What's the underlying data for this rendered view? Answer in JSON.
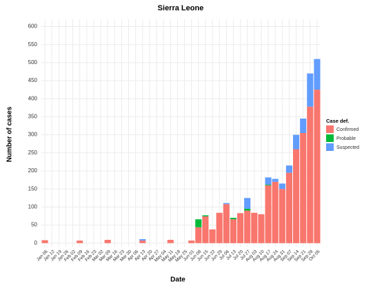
{
  "chart_data": {
    "type": "stacked_bar",
    "title": "Sierra Leone",
    "x_label": "Date",
    "y_label": "Number of cases",
    "categories": [
      "Jan 06",
      "Jan 12",
      "Jan 19",
      "Jan 26",
      "Feb 02",
      "Feb 09",
      "Feb 16",
      "Feb 23",
      "Mar 02",
      "Mar 09",
      "Mar 16",
      "Mar 23",
      "Mar 30",
      "Apr 06",
      "Apr 13",
      "Apr 20",
      "Apr 27",
      "May 04",
      "May 11",
      "May 18",
      "May 25",
      "Jun 01",
      "Jun 08",
      "Jun 15",
      "Jun 22",
      "Jun 29",
      "Jul 06",
      "Jul 13",
      "Jul 20",
      "Jul 27",
      "Aug 03",
      "Aug 10",
      "Aug 17",
      "Aug 24",
      "Aug 31",
      "Sep 07",
      "Sep 14",
      "Sep 21",
      "Sep 28",
      "Oct 05"
    ],
    "series": [
      {
        "name": "Confirmed",
        "color": "#F8766D",
        "values": [
          8,
          0,
          0,
          0,
          0,
          7,
          0,
          0,
          0,
          9,
          0,
          0,
          0,
          0,
          7,
          0,
          0,
          0,
          9,
          0,
          0,
          7,
          44,
          74,
          38,
          84,
          108,
          66,
          83,
          90,
          84,
          80,
          160,
          170,
          150,
          195,
          260,
          305,
          378,
          425
        ]
      },
      {
        "name": "Probable",
        "color": "#00BA38",
        "values": [
          0,
          0,
          0,
          0,
          0,
          0,
          0,
          0,
          0,
          0,
          0,
          0,
          0,
          0,
          0,
          0,
          0,
          0,
          0,
          0,
          0,
          0,
          22,
          3,
          0,
          0,
          0,
          4,
          0,
          5,
          0,
          0,
          2,
          0,
          0,
          0,
          0,
          0,
          0,
          0
        ]
      },
      {
        "name": "Suspected",
        "color": "#619CFF",
        "values": [
          0,
          0,
          0,
          0,
          0,
          0,
          0,
          0,
          0,
          0,
          0,
          0,
          0,
          0,
          4,
          0,
          0,
          0,
          0,
          0,
          0,
          0,
          0,
          0,
          0,
          0,
          3,
          0,
          0,
          30,
          0,
          0,
          20,
          8,
          15,
          20,
          40,
          40,
          92,
          85
        ]
      }
    ],
    "legend_title": "Case def.",
    "legend": "right",
    "ylim": [
      -10,
      620
    ],
    "yticks": [
      0,
      50,
      100,
      150,
      200,
      250,
      300,
      350,
      400,
      450,
      500,
      550,
      600
    ],
    "grid": true
  }
}
